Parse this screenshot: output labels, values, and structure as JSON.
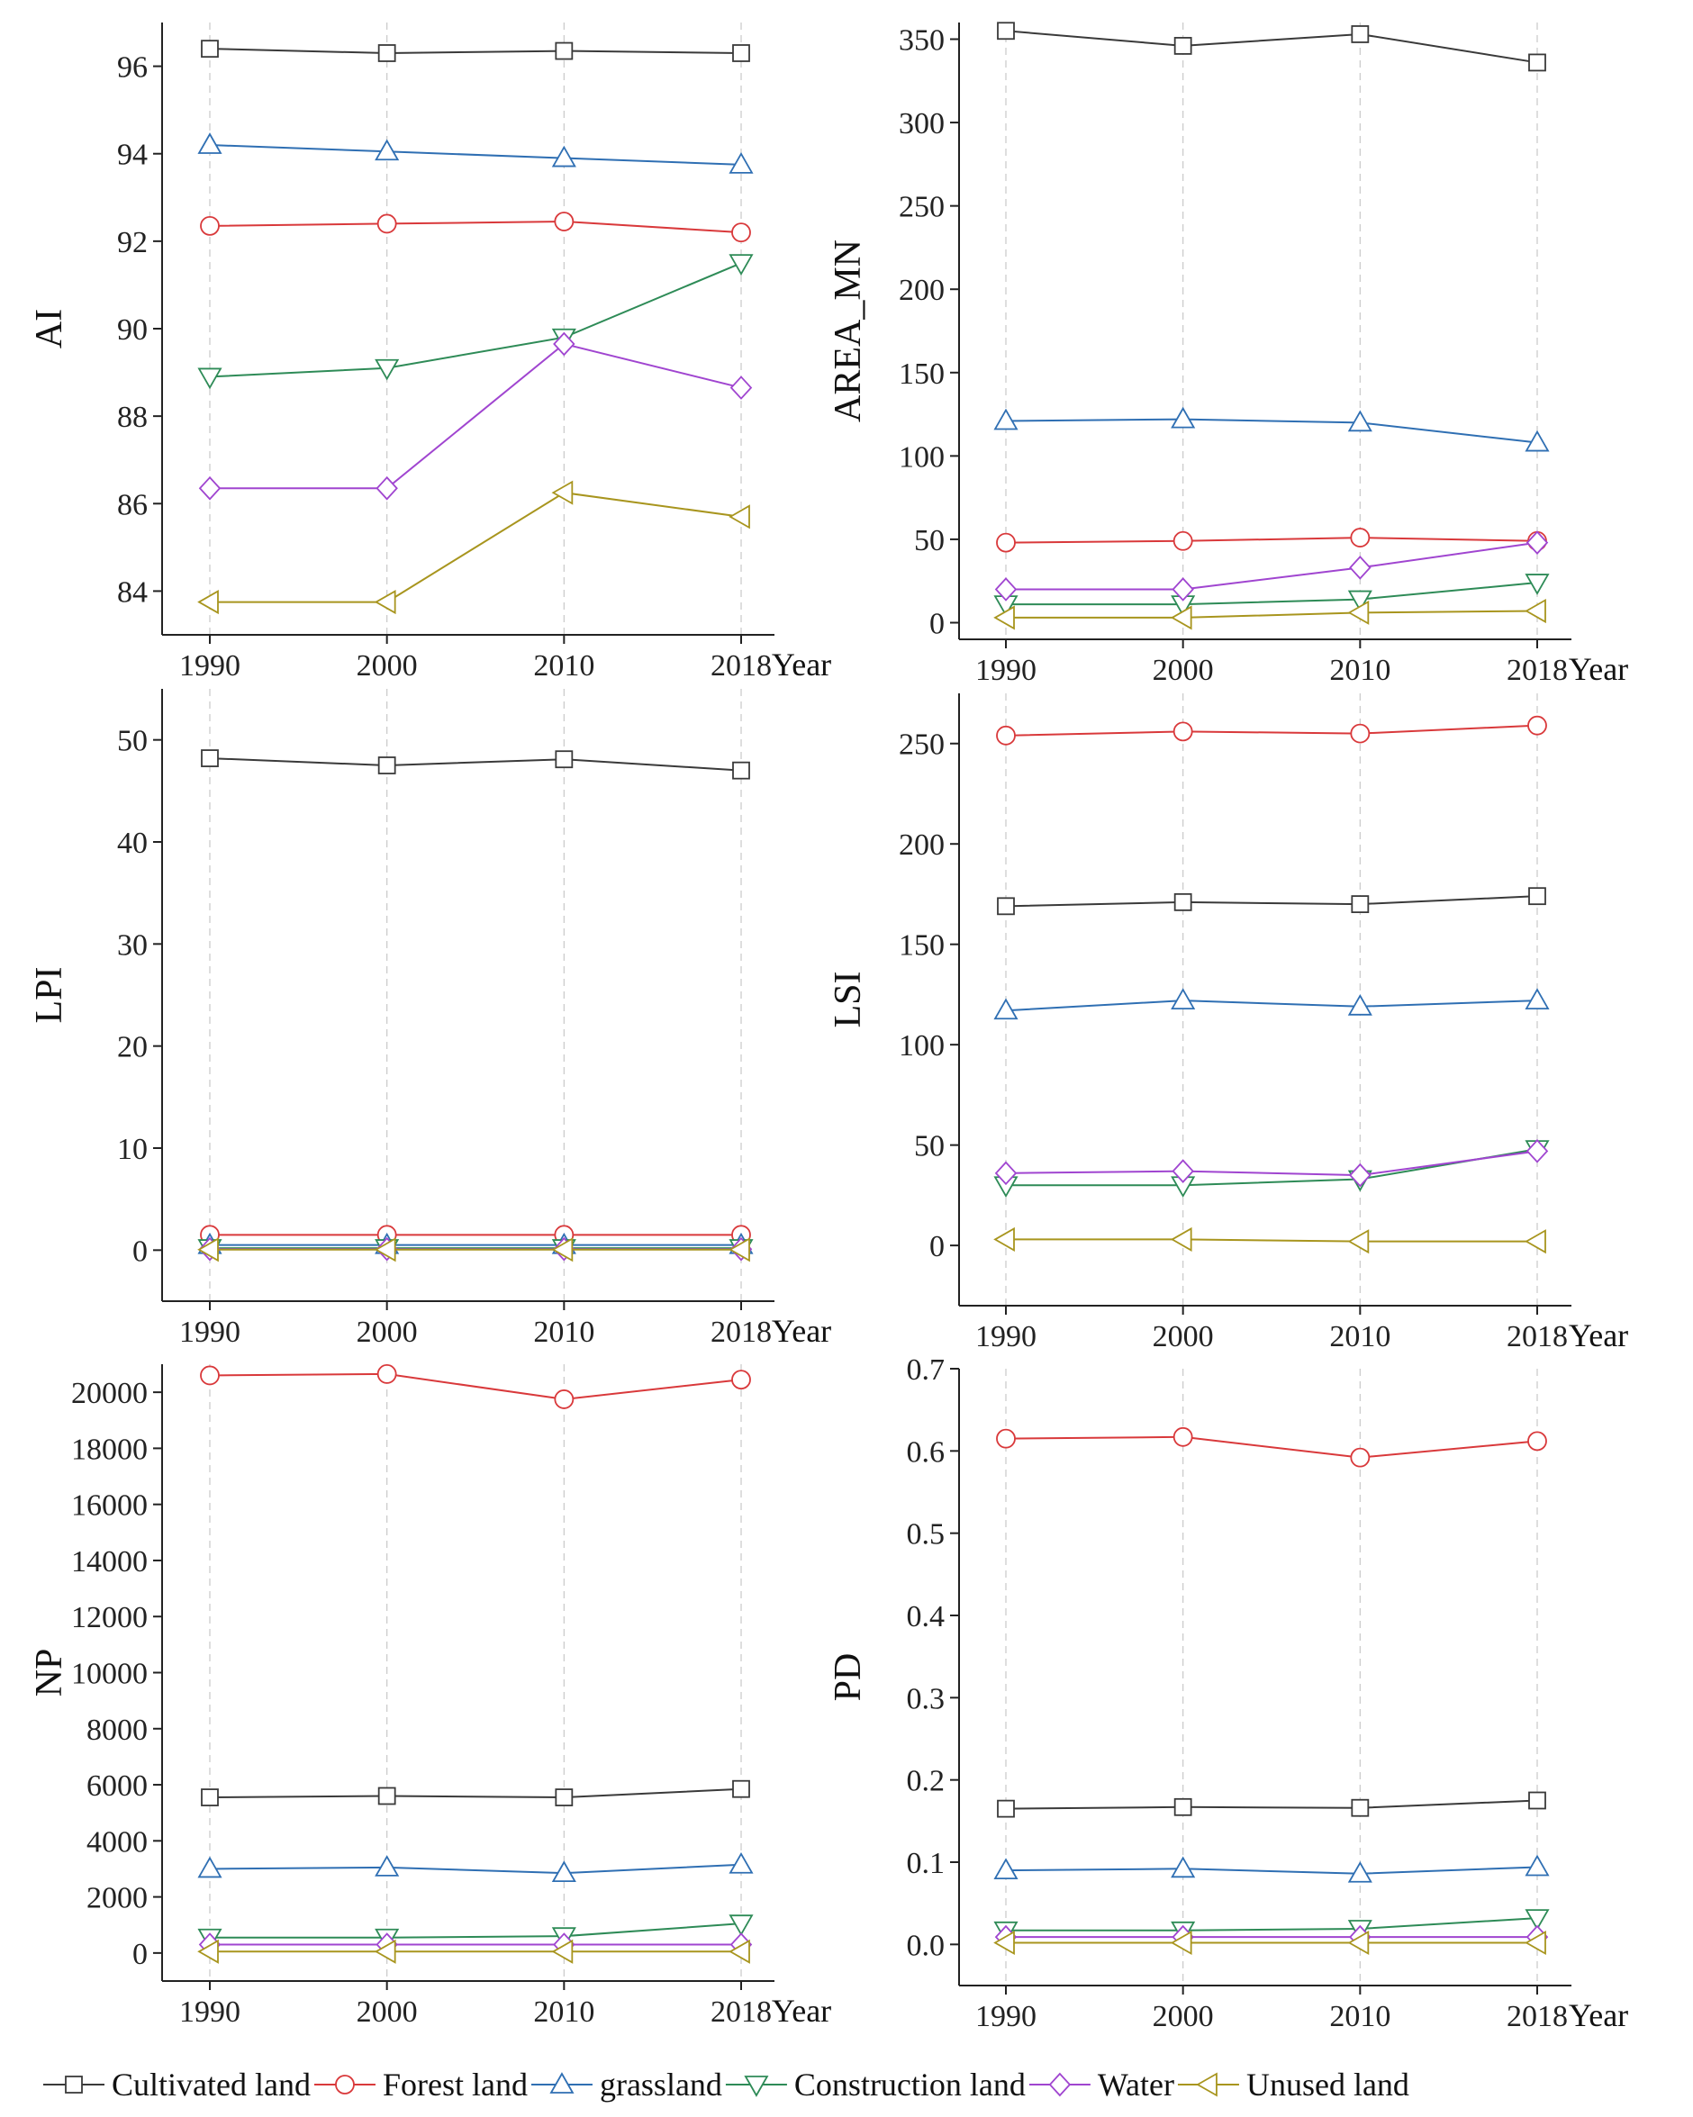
{
  "legend": [
    {
      "name": "Cultivated land",
      "marker": "square",
      "color": "#3a3a3a"
    },
    {
      "name": "Forest land",
      "marker": "circle",
      "color": "#d9393b"
    },
    {
      "name": "grassland",
      "marker": "triangle-up",
      "color": "#2f6fb3"
    },
    {
      "name": "Construction land",
      "marker": "triangle-down",
      "color": "#2e8b57"
    },
    {
      "name": "Water",
      "marker": "diamond",
      "color": "#a045d0"
    },
    {
      "name": "Unused land",
      "marker": "triangle-left",
      "color": "#a8951e"
    }
  ],
  "chart_data": [
    {
      "type": "line",
      "ylabel": "AI",
      "xlabel": "Year",
      "categories": [
        "1990",
        "2000",
        "2010",
        "2018"
      ],
      "ylim": [
        83,
        97
      ],
      "yticks": [
        84,
        86,
        88,
        90,
        92,
        94,
        96
      ],
      "grid": "vertical dashed",
      "series": [
        {
          "name": "Cultivated land",
          "values": [
            96.4,
            96.3,
            96.35,
            96.3
          ]
        },
        {
          "name": "Forest land",
          "values": [
            92.35,
            92.4,
            92.45,
            92.2
          ]
        },
        {
          "name": "grassland",
          "values": [
            94.2,
            94.05,
            93.9,
            93.75
          ]
        },
        {
          "name": "Construction land",
          "values": [
            88.9,
            89.1,
            89.8,
            91.5
          ]
        },
        {
          "name": "Water",
          "values": [
            86.35,
            86.35,
            89.65,
            88.65
          ]
        },
        {
          "name": "Unused land",
          "values": [
            83.75,
            83.75,
            86.25,
            85.7
          ]
        }
      ]
    },
    {
      "type": "line",
      "ylabel": "AREA_MN",
      "xlabel": "Year",
      "categories": [
        "1990",
        "2000",
        "2010",
        "2018"
      ],
      "ylim": [
        -10,
        360
      ],
      "yticks": [
        0,
        50,
        100,
        150,
        200,
        250,
        300,
        350
      ],
      "grid": "vertical dashed",
      "series": [
        {
          "name": "Cultivated land",
          "values": [
            355,
            346,
            353,
            336
          ]
        },
        {
          "name": "Forest land",
          "values": [
            48,
            49,
            51,
            49
          ]
        },
        {
          "name": "grassland",
          "values": [
            121,
            122,
            120,
            108
          ]
        },
        {
          "name": "Construction land",
          "values": [
            11,
            11,
            14,
            24
          ]
        },
        {
          "name": "Water",
          "values": [
            20,
            20,
            33,
            48
          ]
        },
        {
          "name": "Unused land",
          "values": [
            3,
            3,
            6,
            7
          ]
        }
      ]
    },
    {
      "type": "line",
      "ylabel": "LPI",
      "xlabel": "Year",
      "categories": [
        "1990",
        "2000",
        "2010",
        "2018"
      ],
      "ylim": [
        -5,
        55
      ],
      "yticks": [
        0,
        10,
        20,
        30,
        40,
        50
      ],
      "grid": "vertical dashed",
      "series": [
        {
          "name": "Cultivated land",
          "values": [
            48.2,
            47.5,
            48.1,
            47.0
          ]
        },
        {
          "name": "Forest land",
          "values": [
            1.5,
            1.5,
            1.5,
            1.5
          ]
        },
        {
          "name": "grassland",
          "values": [
            0.5,
            0.5,
            0.5,
            0.5
          ]
        },
        {
          "name": "Construction land",
          "values": [
            0.2,
            0.2,
            0.2,
            0.2
          ]
        },
        {
          "name": "Water",
          "values": [
            0.1,
            0.1,
            0.1,
            0.1
          ]
        },
        {
          "name": "Unused land",
          "values": [
            0.05,
            0.05,
            0.05,
            0.05
          ]
        }
      ]
    },
    {
      "type": "line",
      "ylabel": "LSI",
      "xlabel": "Year",
      "categories": [
        "1990",
        "2000",
        "2010",
        "2018"
      ],
      "ylim": [
        -30,
        275
      ],
      "yticks": [
        0,
        50,
        100,
        150,
        200,
        250
      ],
      "grid": "vertical dashed",
      "series": [
        {
          "name": "Cultivated land",
          "values": [
            169,
            171,
            170,
            174
          ]
        },
        {
          "name": "Forest land",
          "values": [
            254,
            256,
            255,
            259
          ]
        },
        {
          "name": "grassland",
          "values": [
            117,
            122,
            119,
            122
          ]
        },
        {
          "name": "Construction land",
          "values": [
            30,
            30,
            33,
            48
          ]
        },
        {
          "name": "Water",
          "values": [
            36,
            37,
            35,
            47
          ]
        },
        {
          "name": "Unused land",
          "values": [
            3,
            3,
            2,
            2
          ]
        }
      ]
    },
    {
      "type": "line",
      "ylabel": "NP",
      "xlabel": "Year",
      "categories": [
        "1990",
        "2000",
        "2010",
        "2018"
      ],
      "ylim": [
        -1000,
        21000
      ],
      "yticks": [
        0,
        2000,
        4000,
        6000,
        8000,
        10000,
        12000,
        14000,
        16000,
        18000,
        20000
      ],
      "grid": "vertical dashed",
      "series": [
        {
          "name": "Cultivated land",
          "values": [
            5550,
            5600,
            5550,
            5850
          ]
        },
        {
          "name": "Forest land",
          "values": [
            20600,
            20650,
            19750,
            20450
          ]
        },
        {
          "name": "grassland",
          "values": [
            3000,
            3050,
            2850,
            3150
          ]
        },
        {
          "name": "Construction land",
          "values": [
            550,
            550,
            600,
            1050
          ]
        },
        {
          "name": "Water",
          "values": [
            300,
            300,
            300,
            300
          ]
        },
        {
          "name": "Unused land",
          "values": [
            50,
            50,
            50,
            50
          ]
        }
      ]
    },
    {
      "type": "line",
      "ylabel": "PD",
      "xlabel": "Year",
      "categories": [
        "1990",
        "2000",
        "2010",
        "2018"
      ],
      "ylim": [
        -0.05,
        0.7
      ],
      "yticks": [
        0.0,
        0.1,
        0.2,
        0.3,
        0.4,
        0.5,
        0.6,
        0.7
      ],
      "ytick_format": "1dp",
      "grid": "vertical dashed",
      "series": [
        {
          "name": "Cultivated land",
          "values": [
            0.165,
            0.167,
            0.166,
            0.175
          ]
        },
        {
          "name": "Forest land",
          "values": [
            0.615,
            0.617,
            0.592,
            0.612
          ]
        },
        {
          "name": "grassland",
          "values": [
            0.09,
            0.092,
            0.086,
            0.094
          ]
        },
        {
          "name": "Construction land",
          "values": [
            0.017,
            0.017,
            0.019,
            0.032
          ]
        },
        {
          "name": "Water",
          "values": [
            0.009,
            0.009,
            0.009,
            0.009
          ]
        },
        {
          "name": "Unused land",
          "values": [
            0.002,
            0.002,
            0.002,
            0.002
          ]
        }
      ]
    }
  ]
}
